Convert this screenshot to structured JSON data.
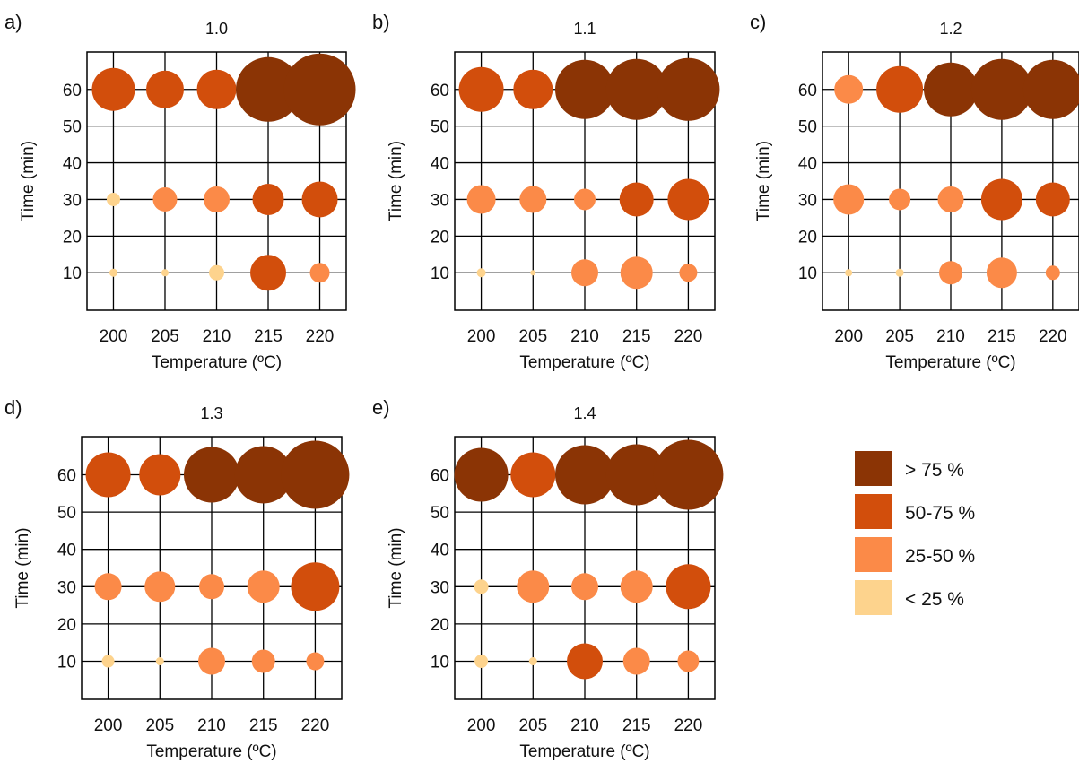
{
  "colors": {
    "gt75": "#8B3405",
    "50to75": "#D24E0C",
    "25to50": "#FB8A48",
    "lt25": "#FDD38D",
    "grid": "#000000"
  },
  "legend": [
    {
      "key": "gt75",
      "label": "> 75 %"
    },
    {
      "key": "50to75",
      "label": "50-75 %"
    },
    {
      "key": "25to50",
      "label": "25-50 %"
    },
    {
      "key": "lt25",
      "label": "< 25 %"
    }
  ],
  "chart_data": [
    {
      "type": "scatter",
      "panel_label": "a)",
      "title": "1.0",
      "xlabel": "Temperature (ºC)",
      "ylabel": "Time (min)",
      "x_ticks": [
        200,
        205,
        210,
        215,
        220
      ],
      "y_ticks": [
        10,
        20,
        30,
        40,
        50,
        60
      ],
      "grid": true,
      "points": [
        {
          "x": 200,
          "y": 60,
          "size": 48,
          "cat": "50to75"
        },
        {
          "x": 205,
          "y": 60,
          "size": 42,
          "cat": "50to75"
        },
        {
          "x": 210,
          "y": 60,
          "size": 44,
          "cat": "50to75"
        },
        {
          "x": 215,
          "y": 60,
          "size": 72,
          "cat": "gt75"
        },
        {
          "x": 220,
          "y": 60,
          "size": 80,
          "cat": "gt75"
        },
        {
          "x": 200,
          "y": 30,
          "size": 15,
          "cat": "lt25"
        },
        {
          "x": 205,
          "y": 30,
          "size": 27,
          "cat": "25to50"
        },
        {
          "x": 210,
          "y": 30,
          "size": 29,
          "cat": "25to50"
        },
        {
          "x": 215,
          "y": 30,
          "size": 35,
          "cat": "50to75"
        },
        {
          "x": 220,
          "y": 30,
          "size": 40,
          "cat": "50to75"
        },
        {
          "x": 200,
          "y": 10,
          "size": 9,
          "cat": "lt25"
        },
        {
          "x": 205,
          "y": 10,
          "size": 8,
          "cat": "lt25"
        },
        {
          "x": 210,
          "y": 10,
          "size": 17,
          "cat": "lt25"
        },
        {
          "x": 215,
          "y": 10,
          "size": 40,
          "cat": "50to75"
        },
        {
          "x": 220,
          "y": 10,
          "size": 22,
          "cat": "25to50"
        }
      ]
    },
    {
      "type": "scatter",
      "panel_label": "b)",
      "title": "1.1",
      "xlabel": "Temperature (ºC)",
      "ylabel": "Time (min)",
      "x_ticks": [
        200,
        205,
        210,
        215,
        220
      ],
      "y_ticks": [
        10,
        20,
        30,
        40,
        50,
        60
      ],
      "grid": true,
      "points": [
        {
          "x": 200,
          "y": 60,
          "size": 50,
          "cat": "50to75"
        },
        {
          "x": 205,
          "y": 60,
          "size": 44,
          "cat": "50to75"
        },
        {
          "x": 210,
          "y": 60,
          "size": 66,
          "cat": "gt75"
        },
        {
          "x": 215,
          "y": 60,
          "size": 68,
          "cat": "gt75"
        },
        {
          "x": 220,
          "y": 60,
          "size": 70,
          "cat": "gt75"
        },
        {
          "x": 200,
          "y": 30,
          "size": 32,
          "cat": "25to50"
        },
        {
          "x": 205,
          "y": 30,
          "size": 30,
          "cat": "25to50"
        },
        {
          "x": 210,
          "y": 30,
          "size": 24,
          "cat": "25to50"
        },
        {
          "x": 215,
          "y": 30,
          "size": 38,
          "cat": "50to75"
        },
        {
          "x": 220,
          "y": 30,
          "size": 46,
          "cat": "50to75"
        },
        {
          "x": 200,
          "y": 10,
          "size": 10,
          "cat": "lt25"
        },
        {
          "x": 205,
          "y": 10,
          "size": 6,
          "cat": "lt25"
        },
        {
          "x": 210,
          "y": 10,
          "size": 30,
          "cat": "25to50"
        },
        {
          "x": 215,
          "y": 10,
          "size": 36,
          "cat": "25to50"
        },
        {
          "x": 220,
          "y": 10,
          "size": 20,
          "cat": "25to50"
        }
      ]
    },
    {
      "type": "scatter",
      "panel_label": "c)",
      "title": "1.2",
      "xlabel": "Temperature (ºC)",
      "ylabel": "Time (min)",
      "x_ticks": [
        200,
        205,
        210,
        215,
        220
      ],
      "y_ticks": [
        10,
        20,
        30,
        40,
        50,
        60
      ],
      "grid": true,
      "points": [
        {
          "x": 200,
          "y": 60,
          "size": 32,
          "cat": "25to50"
        },
        {
          "x": 205,
          "y": 60,
          "size": 52,
          "cat": "50to75"
        },
        {
          "x": 210,
          "y": 60,
          "size": 60,
          "cat": "gt75"
        },
        {
          "x": 215,
          "y": 60,
          "size": 68,
          "cat": "gt75"
        },
        {
          "x": 220,
          "y": 60,
          "size": 66,
          "cat": "gt75"
        },
        {
          "x": 200,
          "y": 30,
          "size": 34,
          "cat": "25to50"
        },
        {
          "x": 205,
          "y": 30,
          "size": 24,
          "cat": "25to50"
        },
        {
          "x": 210,
          "y": 30,
          "size": 29,
          "cat": "25to50"
        },
        {
          "x": 215,
          "y": 30,
          "size": 46,
          "cat": "50to75"
        },
        {
          "x": 220,
          "y": 30,
          "size": 38,
          "cat": "50to75"
        },
        {
          "x": 200,
          "y": 10,
          "size": 8,
          "cat": "lt25"
        },
        {
          "x": 205,
          "y": 10,
          "size": 9,
          "cat": "lt25"
        },
        {
          "x": 210,
          "y": 10,
          "size": 26,
          "cat": "25to50"
        },
        {
          "x": 215,
          "y": 10,
          "size": 34,
          "cat": "25to50"
        },
        {
          "x": 220,
          "y": 10,
          "size": 16,
          "cat": "25to50"
        }
      ]
    },
    {
      "type": "scatter",
      "panel_label": "d)",
      "title": "1.3",
      "xlabel": "Temperature (ºC)",
      "ylabel": "Time (min)",
      "x_ticks": [
        200,
        205,
        210,
        215,
        220
      ],
      "y_ticks": [
        10,
        20,
        30,
        40,
        50,
        60
      ],
      "grid": true,
      "points": [
        {
          "x": 200,
          "y": 60,
          "size": 50,
          "cat": "50to75"
        },
        {
          "x": 205,
          "y": 60,
          "size": 46,
          "cat": "50to75"
        },
        {
          "x": 210,
          "y": 60,
          "size": 62,
          "cat": "gt75"
        },
        {
          "x": 215,
          "y": 60,
          "size": 64,
          "cat": "gt75"
        },
        {
          "x": 220,
          "y": 60,
          "size": 76,
          "cat": "gt75"
        },
        {
          "x": 200,
          "y": 30,
          "size": 30,
          "cat": "25to50"
        },
        {
          "x": 205,
          "y": 30,
          "size": 34,
          "cat": "25to50"
        },
        {
          "x": 210,
          "y": 30,
          "size": 28,
          "cat": "25to50"
        },
        {
          "x": 215,
          "y": 30,
          "size": 36,
          "cat": "25to50"
        },
        {
          "x": 220,
          "y": 30,
          "size": 54,
          "cat": "50to75"
        },
        {
          "x": 200,
          "y": 10,
          "size": 14,
          "cat": "lt25"
        },
        {
          "x": 205,
          "y": 10,
          "size": 9,
          "cat": "lt25"
        },
        {
          "x": 210,
          "y": 10,
          "size": 30,
          "cat": "25to50"
        },
        {
          "x": 215,
          "y": 10,
          "size": 26,
          "cat": "25to50"
        },
        {
          "x": 220,
          "y": 10,
          "size": 20,
          "cat": "25to50"
        }
      ]
    },
    {
      "type": "scatter",
      "panel_label": "e)",
      "title": "1.4",
      "xlabel": "Temperature (ºC)",
      "ylabel": "Time (min)",
      "x_ticks": [
        200,
        205,
        210,
        215,
        220
      ],
      "y_ticks": [
        10,
        20,
        30,
        40,
        50,
        60
      ],
      "grid": true,
      "points": [
        {
          "x": 200,
          "y": 60,
          "size": 60,
          "cat": "gt75"
        },
        {
          "x": 205,
          "y": 60,
          "size": 50,
          "cat": "50to75"
        },
        {
          "x": 210,
          "y": 60,
          "size": 66,
          "cat": "gt75"
        },
        {
          "x": 215,
          "y": 60,
          "size": 68,
          "cat": "gt75"
        },
        {
          "x": 220,
          "y": 60,
          "size": 78,
          "cat": "gt75"
        },
        {
          "x": 200,
          "y": 30,
          "size": 16,
          "cat": "lt25"
        },
        {
          "x": 205,
          "y": 30,
          "size": 36,
          "cat": "25to50"
        },
        {
          "x": 210,
          "y": 30,
          "size": 30,
          "cat": "25to50"
        },
        {
          "x": 215,
          "y": 30,
          "size": 36,
          "cat": "25to50"
        },
        {
          "x": 220,
          "y": 30,
          "size": 50,
          "cat": "50to75"
        },
        {
          "x": 200,
          "y": 10,
          "size": 15,
          "cat": "lt25"
        },
        {
          "x": 205,
          "y": 10,
          "size": 9,
          "cat": "lt25"
        },
        {
          "x": 210,
          "y": 10,
          "size": 40,
          "cat": "50to75"
        },
        {
          "x": 215,
          "y": 10,
          "size": 30,
          "cat": "25to50"
        },
        {
          "x": 220,
          "y": 10,
          "size": 24,
          "cat": "25to50"
        }
      ]
    }
  ]
}
